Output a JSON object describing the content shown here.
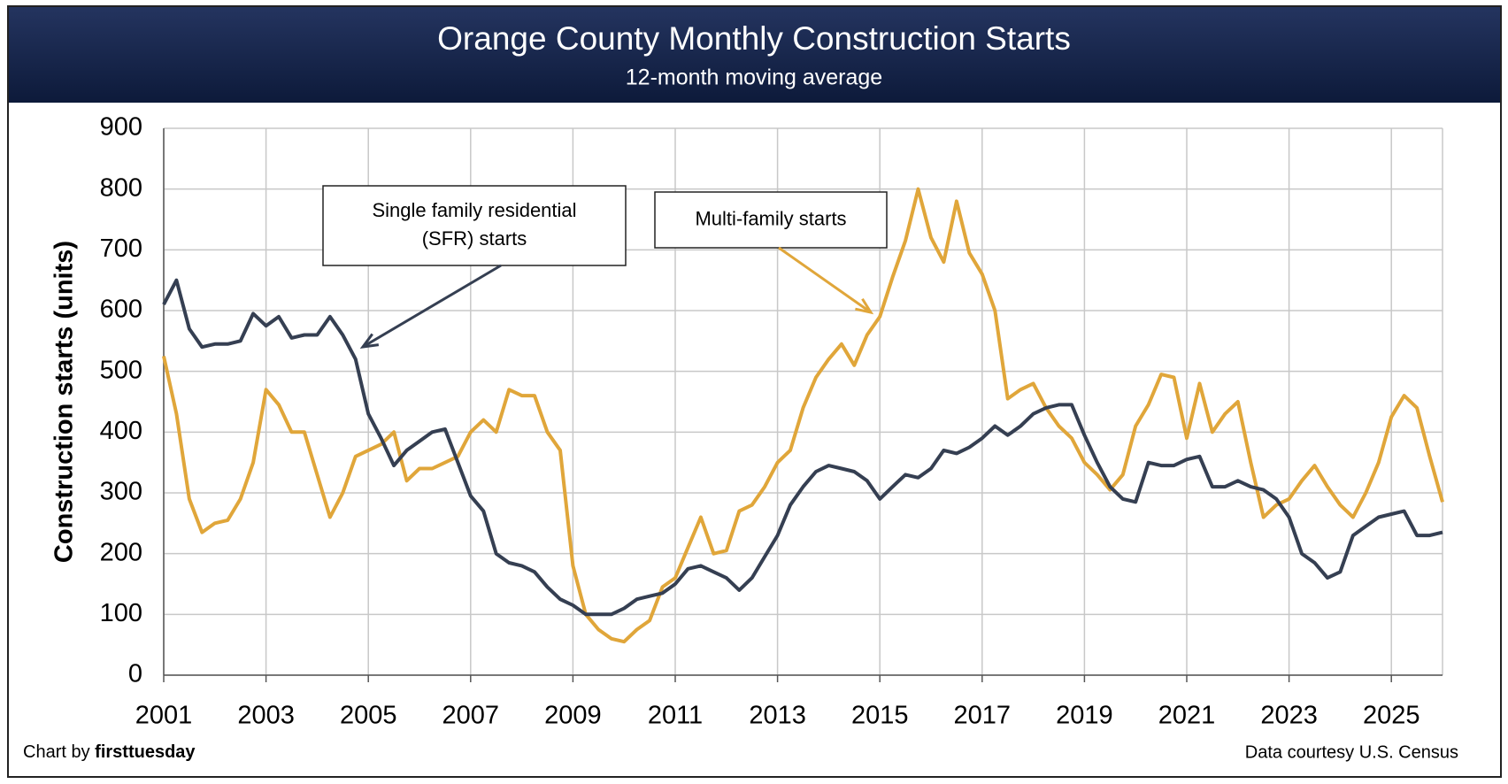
{
  "chart_data": {
    "type": "line",
    "title": "Orange County Monthly Construction Starts",
    "subtitle": "12-month moving average",
    "y_label": "Construction starts (units)",
    "xlim": [
      2001,
      2026
    ],
    "xticks": [
      2001,
      2003,
      2005,
      2007,
      2009,
      2011,
      2013,
      2015,
      2017,
      2019,
      2021,
      2023,
      2025
    ],
    "ylim": [
      0,
      900
    ],
    "yticks": [
      0,
      100,
      200,
      300,
      400,
      500,
      600,
      700,
      800,
      900
    ],
    "grid": true,
    "x": [
      2001,
      2001.25,
      2001.5,
      2001.75,
      2002,
      2002.25,
      2002.5,
      2002.75,
      2003,
      2003.25,
      2003.5,
      2003.75,
      2004,
      2004.25,
      2004.5,
      2004.75,
      2005,
      2005.25,
      2005.5,
      2005.75,
      2006,
      2006.25,
      2006.5,
      2006.75,
      2007,
      2007.25,
      2007.5,
      2007.75,
      2008,
      2008.25,
      2008.5,
      2008.75,
      2009,
      2009.25,
      2009.5,
      2009.75,
      2010,
      2010.25,
      2010.5,
      2010.75,
      2011,
      2011.25,
      2011.5,
      2011.75,
      2012,
      2012.25,
      2012.5,
      2012.75,
      2013,
      2013.25,
      2013.5,
      2013.75,
      2014,
      2014.25,
      2014.5,
      2014.75,
      2015,
      2015.25,
      2015.5,
      2015.75,
      2016,
      2016.25,
      2016.5,
      2016.75,
      2017,
      2017.25,
      2017.5,
      2017.75,
      2018,
      2018.25,
      2018.5,
      2018.75,
      2019,
      2019.25,
      2019.5,
      2019.75,
      2020,
      2020.25,
      2020.5,
      2020.75,
      2021,
      2021.25,
      2021.5,
      2021.75,
      2022,
      2022.25,
      2022.5,
      2022.75,
      2023,
      2023.25,
      2023.5,
      2023.75,
      2024,
      2024.25,
      2024.5,
      2024.75,
      2025,
      2025.25,
      2025.5,
      2025.75,
      2026
    ],
    "series": [
      {
        "name": "Single family residential (SFR) starts",
        "color": "#353f52",
        "values": [
          610,
          650,
          570,
          540,
          545,
          545,
          550,
          595,
          575,
          590,
          555,
          560,
          560,
          590,
          560,
          520,
          430,
          390,
          345,
          370,
          385,
          400,
          405,
          350,
          295,
          270,
          200,
          185,
          180,
          170,
          145,
          125,
          115,
          100,
          100,
          100,
          110,
          125,
          130,
          135,
          150,
          175,
          180,
          170,
          160,
          140,
          160,
          195,
          230,
          280,
          310,
          335,
          345,
          340,
          335,
          320,
          290,
          310,
          330,
          325,
          340,
          370,
          365,
          375,
          390,
          410,
          395,
          410,
          430,
          440,
          445,
          445,
          395,
          350,
          310,
          290,
          285,
          350,
          345,
          345,
          355,
          360,
          310,
          310,
          320,
          310,
          305,
          290,
          260,
          200,
          185,
          160,
          170,
          230,
          245,
          260,
          265,
          270,
          230,
          230,
          235
        ]
      },
      {
        "name": "Multi-family starts",
        "color": "#e0a63a",
        "values": [
          525,
          430,
          290,
          235,
          250,
          255,
          290,
          350,
          470,
          445,
          400,
          400,
          330,
          260,
          300,
          360,
          370,
          380,
          400,
          320,
          340,
          340,
          350,
          360,
          400,
          420,
          400,
          470,
          460,
          460,
          400,
          370,
          180,
          100,
          75,
          60,
          55,
          75,
          90,
          145,
          160,
          210,
          260,
          200,
          205,
          270,
          280,
          310,
          350,
          370,
          440,
          490,
          520,
          545,
          510,
          560,
          590,
          655,
          715,
          800,
          720,
          680,
          780,
          695,
          660,
          600,
          455,
          470,
          480,
          440,
          410,
          390,
          350,
          330,
          305,
          330,
          410,
          445,
          495,
          490,
          390,
          480,
          400,
          430,
          450,
          350,
          260,
          280,
          290,
          320,
          345,
          310,
          280,
          260,
          300,
          350,
          425,
          460,
          440,
          360,
          285
        ]
      }
    ],
    "annotations": [
      {
        "lines": [
          "Single family residential",
          "(SFR) starts"
        ]
      },
      {
        "lines": [
          "Multi-family starts"
        ]
      }
    ],
    "credit": [
      "Chart by",
      "firsttuesday"
    ],
    "source": "Data courtesy U.S. Census"
  }
}
